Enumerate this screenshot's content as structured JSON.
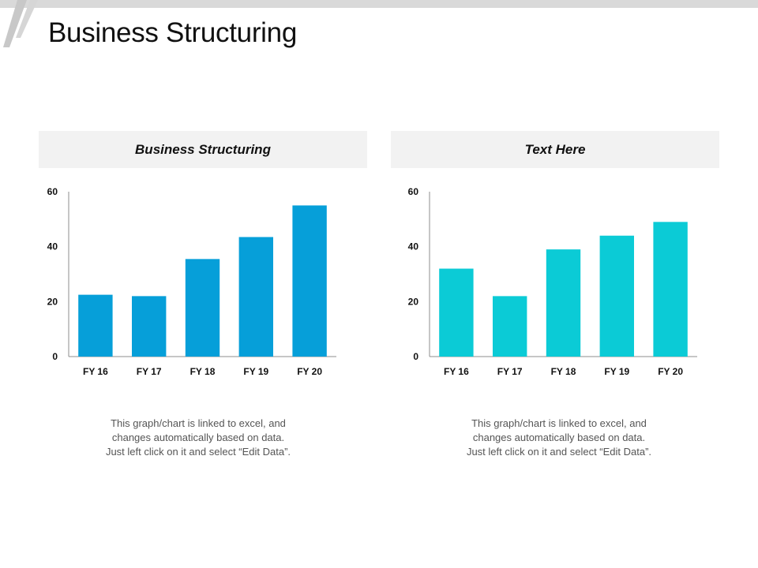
{
  "page": {
    "title": "Business Structuring"
  },
  "colors": {
    "chart1_bar": "#069fd9",
    "chart2_bar": "#0bcbd6",
    "panel_header_bg": "#f2f2f2"
  },
  "chart_data": [
    {
      "type": "bar",
      "title": "Business Structuring",
      "categories": [
        "FY 16",
        "FY 17",
        "FY 18",
        "FY 19",
        "FY 20"
      ],
      "values": [
        22.5,
        22,
        35.5,
        43.5,
        55
      ],
      "yticks": [
        0,
        20,
        40,
        60
      ],
      "ylim": [
        0,
        60
      ],
      "xlabel": "",
      "ylabel": "",
      "grid": false,
      "caption": [
        "This graph/chart is linked to excel, and",
        "changes automatically based on data.",
        "Just left click on it and select “Edit Data”."
      ]
    },
    {
      "type": "bar",
      "title": "Text Here",
      "categories": [
        "FY 16",
        "FY 17",
        "FY 18",
        "FY 19",
        "FY 20"
      ],
      "values": [
        32,
        22,
        39,
        44,
        49
      ],
      "yticks": [
        0,
        20,
        40,
        60
      ],
      "ylim": [
        0,
        60
      ],
      "xlabel": "",
      "ylabel": "",
      "grid": false,
      "caption": [
        "This graph/chart is linked to excel, and",
        "changes automatically based on data.",
        "Just left click on it and select “Edit Data”."
      ]
    }
  ]
}
